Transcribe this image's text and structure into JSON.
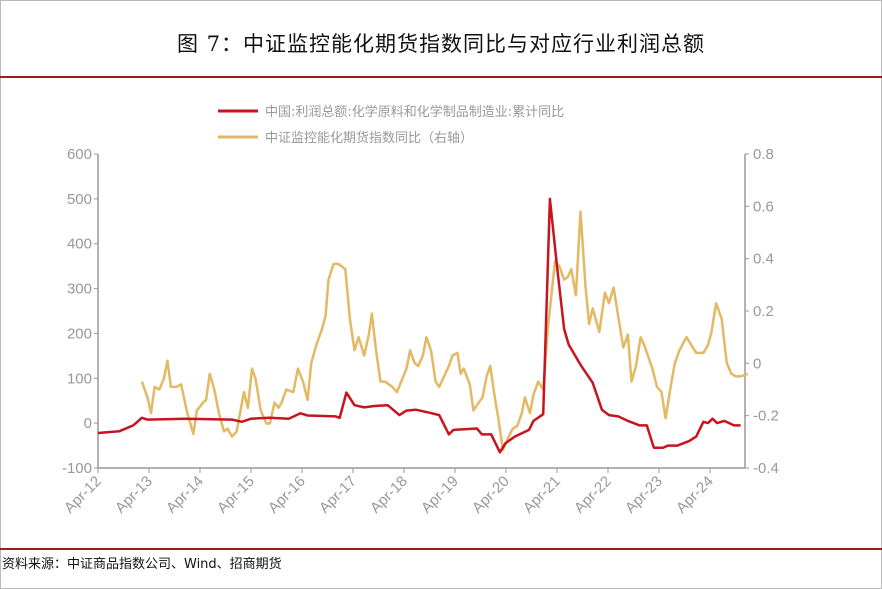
{
  "title": "图 7：中证监控能化期货指数同比与对应行业利润总额",
  "source": "资料来源：中证商品指数公司、Wind、招商期货",
  "colors": {
    "red": "#c8141e",
    "gold": "#e3b964",
    "rule": "#a01c1c"
  },
  "chart_data": {
    "type": "line",
    "title": "",
    "legend_position": "top",
    "grid": false,
    "x_ticks": [
      "Apr-12",
      "Apr-13",
      "Apr-14",
      "Apr-15",
      "Apr-16",
      "Apr-17",
      "Apr-18",
      "Apr-19",
      "Apr-20",
      "Apr-21",
      "Apr-22",
      "Apr-23",
      "Apr-24"
    ],
    "x_range": [
      2012.25,
      2025.0
    ],
    "y_left": {
      "range": [
        -100,
        600
      ],
      "ticks": [
        "600",
        "500",
        "400",
        "300",
        "200",
        "100",
        "0",
        "-100"
      ]
    },
    "y_right": {
      "range": [
        -0.4,
        0.8
      ],
      "ticks": [
        "0.8",
        "0.6",
        "0.4",
        "0.2",
        "0",
        "-0.2",
        "-0.4"
      ]
    },
    "series": [
      {
        "name": "中国:利润总额:化学原料和化学制品制造业:累计同比",
        "axis": "left",
        "color": "#c8141e",
        "points": [
          [
            2012.25,
            -22
          ],
          [
            2012.67,
            -18
          ],
          [
            2012.94,
            -5
          ],
          [
            2013.11,
            12
          ],
          [
            2013.22,
            8
          ],
          [
            2013.96,
            10
          ],
          [
            2014.88,
            8
          ],
          [
            2015.07,
            3
          ],
          [
            2015.25,
            10
          ],
          [
            2015.62,
            12
          ],
          [
            2015.99,
            10
          ],
          [
            2016.22,
            22
          ],
          [
            2016.36,
            17
          ],
          [
            2016.91,
            15
          ],
          [
            2016.99,
            12
          ],
          [
            2017.12,
            68
          ],
          [
            2017.28,
            40
          ],
          [
            2017.47,
            35
          ],
          [
            2017.65,
            38
          ],
          [
            2017.93,
            40
          ],
          [
            2018.16,
            18
          ],
          [
            2018.3,
            28
          ],
          [
            2018.48,
            30
          ],
          [
            2018.76,
            23
          ],
          [
            2018.94,
            18
          ],
          [
            2019.13,
            -25
          ],
          [
            2019.22,
            -15
          ],
          [
            2019.68,
            -12
          ],
          [
            2019.78,
            -25
          ],
          [
            2019.96,
            -25
          ],
          [
            2020.13,
            -65
          ],
          [
            2020.24,
            -45
          ],
          [
            2020.42,
            -30
          ],
          [
            2020.7,
            -15
          ],
          [
            2020.79,
            5
          ],
          [
            2020.98,
            20
          ],
          [
            2021.11,
            500
          ],
          [
            2021.25,
            350
          ],
          [
            2021.39,
            210
          ],
          [
            2021.48,
            175
          ],
          [
            2021.71,
            130
          ],
          [
            2021.95,
            90
          ],
          [
            2022.13,
            30
          ],
          [
            2022.27,
            18
          ],
          [
            2022.45,
            15
          ],
          [
            2022.64,
            5
          ],
          [
            2022.87,
            -5
          ],
          [
            2023.01,
            -5
          ],
          [
            2023.15,
            -55
          ],
          [
            2023.33,
            -55
          ],
          [
            2023.42,
            -50
          ],
          [
            2023.61,
            -50
          ],
          [
            2023.84,
            -40
          ],
          [
            2023.98,
            -30
          ],
          [
            2024.12,
            3
          ],
          [
            2024.21,
            0
          ],
          [
            2024.3,
            10
          ],
          [
            2024.39,
            0
          ],
          [
            2024.53,
            5
          ],
          [
            2024.72,
            -5
          ],
          [
            2024.85,
            -5
          ]
        ]
      },
      {
        "name": "中证监控能化期货指数同比（右轴）",
        "axis": "right",
        "color": "#e3b964",
        "points": [
          [
            2013.11,
            -0.07
          ],
          [
            2013.22,
            -0.13
          ],
          [
            2013.29,
            -0.19
          ],
          [
            2013.36,
            -0.09
          ],
          [
            2013.45,
            -0.1
          ],
          [
            2013.54,
            -0.06
          ],
          [
            2013.61,
            0.01
          ],
          [
            2013.68,
            -0.09
          ],
          [
            2013.79,
            -0.09
          ],
          [
            2013.88,
            -0.08
          ],
          [
            2014.0,
            -0.19
          ],
          [
            2014.12,
            -0.27
          ],
          [
            2014.19,
            -0.18
          ],
          [
            2014.31,
            -0.15
          ],
          [
            2014.37,
            -0.14
          ],
          [
            2014.44,
            -0.04
          ],
          [
            2014.53,
            -0.1
          ],
          [
            2014.62,
            -0.19
          ],
          [
            2014.72,
            -0.26
          ],
          [
            2014.79,
            -0.25
          ],
          [
            2014.88,
            -0.28
          ],
          [
            2014.97,
            -0.26
          ],
          [
            2015.11,
            -0.11
          ],
          [
            2015.19,
            -0.17
          ],
          [
            2015.27,
            -0.02
          ],
          [
            2015.34,
            -0.06
          ],
          [
            2015.44,
            -0.18
          ],
          [
            2015.55,
            -0.23
          ],
          [
            2015.62,
            -0.23
          ],
          [
            2015.71,
            -0.15
          ],
          [
            2015.79,
            -0.17
          ],
          [
            2015.85,
            -0.15
          ],
          [
            2015.94,
            -0.1
          ],
          [
            2016.08,
            -0.11
          ],
          [
            2016.17,
            -0.02
          ],
          [
            2016.27,
            -0.07
          ],
          [
            2016.36,
            -0.14
          ],
          [
            2016.43,
            0.0
          ],
          [
            2016.53,
            0.07
          ],
          [
            2016.64,
            0.13
          ],
          [
            2016.71,
            0.18
          ],
          [
            2016.77,
            0.32
          ],
          [
            2016.87,
            0.38
          ],
          [
            2016.96,
            0.38
          ],
          [
            2017.1,
            0.36
          ],
          [
            2017.19,
            0.17
          ],
          [
            2017.28,
            0.05
          ],
          [
            2017.36,
            0.1
          ],
          [
            2017.47,
            0.03
          ],
          [
            2017.56,
            0.11
          ],
          [
            2017.62,
            0.19
          ],
          [
            2017.7,
            0.05
          ],
          [
            2017.79,
            -0.07
          ],
          [
            2017.88,
            -0.07
          ],
          [
            2018.02,
            -0.09
          ],
          [
            2018.11,
            -0.11
          ],
          [
            2018.3,
            -0.02
          ],
          [
            2018.37,
            0.05
          ],
          [
            2018.46,
            0.0
          ],
          [
            2018.53,
            -0.01
          ],
          [
            2018.62,
            0.03
          ],
          [
            2018.69,
            0.1
          ],
          [
            2018.78,
            0.05
          ],
          [
            2018.87,
            -0.07
          ],
          [
            2018.94,
            -0.09
          ],
          [
            2019.13,
            -0.01
          ],
          [
            2019.2,
            0.03
          ],
          [
            2019.3,
            0.04
          ],
          [
            2019.36,
            -0.04
          ],
          [
            2019.42,
            -0.02
          ],
          [
            2019.54,
            -0.08
          ],
          [
            2019.61,
            -0.18
          ],
          [
            2019.68,
            -0.16
          ],
          [
            2019.79,
            -0.13
          ],
          [
            2019.87,
            -0.05
          ],
          [
            2019.94,
            -0.01
          ],
          [
            2020.03,
            -0.13
          ],
          [
            2020.1,
            -0.21
          ],
          [
            2020.19,
            -0.33
          ],
          [
            2020.28,
            -0.29
          ],
          [
            2020.38,
            -0.25
          ],
          [
            2020.47,
            -0.24
          ],
          [
            2020.56,
            -0.19
          ],
          [
            2020.62,
            -0.13
          ],
          [
            2020.72,
            -0.19
          ],
          [
            2020.79,
            -0.12
          ],
          [
            2020.88,
            -0.07
          ],
          [
            2020.98,
            -0.1
          ],
          [
            2021.07,
            0.13
          ],
          [
            2021.21,
            0.39
          ],
          [
            2021.3,
            0.37
          ],
          [
            2021.39,
            0.32
          ],
          [
            2021.46,
            0.33
          ],
          [
            2021.53,
            0.36
          ],
          [
            2021.62,
            0.26
          ],
          [
            2021.71,
            0.58
          ],
          [
            2021.81,
            0.29
          ],
          [
            2021.88,
            0.15
          ],
          [
            2021.95,
            0.21
          ],
          [
            2022.08,
            0.12
          ],
          [
            2022.19,
            0.27
          ],
          [
            2022.27,
            0.23
          ],
          [
            2022.36,
            0.29
          ],
          [
            2022.45,
            0.18
          ],
          [
            2022.55,
            0.06
          ],
          [
            2022.64,
            0.11
          ],
          [
            2022.71,
            -0.07
          ],
          [
            2022.8,
            -0.01
          ],
          [
            2022.89,
            0.1
          ],
          [
            2022.96,
            0.07
          ],
          [
            2023.12,
            -0.02
          ],
          [
            2023.21,
            -0.09
          ],
          [
            2023.3,
            -0.11
          ],
          [
            2023.38,
            -0.21
          ],
          [
            2023.47,
            -0.1
          ],
          [
            2023.56,
            0.0
          ],
          [
            2023.65,
            0.05
          ],
          [
            2023.79,
            0.1
          ],
          [
            2023.98,
            0.04
          ],
          [
            2024.12,
            0.04
          ],
          [
            2024.21,
            0.07
          ],
          [
            2024.28,
            0.12
          ],
          [
            2024.37,
            0.23
          ],
          [
            2024.48,
            0.17
          ],
          [
            2024.58,
            0.0
          ],
          [
            2024.67,
            -0.04
          ],
          [
            2024.76,
            -0.05
          ],
          [
            2024.85,
            -0.05
          ],
          [
            2024.99,
            -0.04
          ]
        ]
      }
    ]
  }
}
